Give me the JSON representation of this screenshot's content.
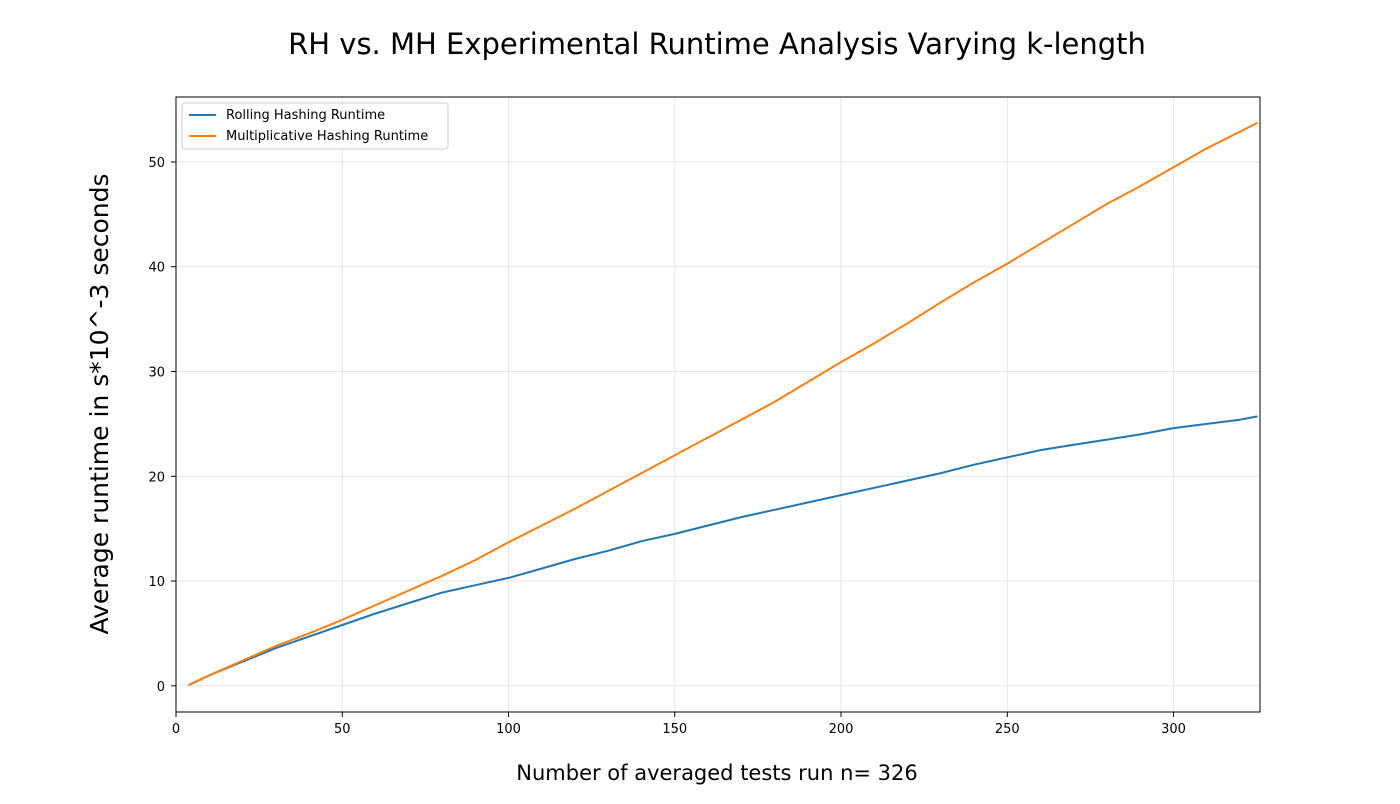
{
  "chart_data": {
    "type": "line",
    "title": "RH vs. MH  Experimental Runtime Analysis Varying k-length",
    "xlabel": "Number of averaged tests run n= 326",
    "ylabel": "Average runtime in s*10^-3 seconds",
    "xlim": [
      0,
      326
    ],
    "ylim": [
      -2.5,
      56.2
    ],
    "xticks": [
      0,
      50,
      100,
      150,
      200,
      250,
      300
    ],
    "yticks": [
      0,
      10,
      20,
      30,
      40,
      50
    ],
    "grid": true,
    "legend_position": "top-left",
    "series": [
      {
        "name": "Rolling Hashing Runtime",
        "color": "#1f77b4",
        "x": [
          4,
          10,
          20,
          30,
          40,
          50,
          60,
          70,
          80,
          90,
          100,
          110,
          120,
          130,
          140,
          150,
          160,
          170,
          180,
          190,
          200,
          210,
          220,
          230,
          240,
          250,
          260,
          270,
          280,
          290,
          300,
          310,
          320,
          325
        ],
        "y": [
          0.1,
          1.0,
          2.3,
          3.6,
          4.7,
          5.8,
          6.9,
          7.9,
          8.9,
          9.6,
          10.3,
          11.2,
          12.1,
          12.9,
          13.8,
          14.5,
          15.3,
          16.1,
          16.8,
          17.5,
          18.2,
          18.9,
          19.6,
          20.3,
          21.1,
          21.8,
          22.5,
          23.0,
          23.5,
          24.0,
          24.6,
          25.0,
          25.4,
          25.7
        ]
      },
      {
        "name": "Multiplicative Hashing Runtime",
        "color": "#ff7f0e",
        "x": [
          4,
          10,
          20,
          30,
          40,
          50,
          60,
          70,
          80,
          90,
          100,
          110,
          120,
          130,
          140,
          150,
          160,
          170,
          180,
          190,
          200,
          210,
          220,
          230,
          240,
          250,
          260,
          270,
          280,
          290,
          300,
          310,
          320,
          325
        ],
        "y": [
          0.1,
          1.0,
          2.4,
          3.8,
          5.0,
          6.3,
          7.7,
          9.1,
          10.5,
          12.0,
          13.7,
          15.3,
          16.9,
          18.6,
          20.3,
          22.0,
          23.7,
          25.4,
          27.1,
          29.0,
          30.9,
          32.7,
          34.6,
          36.6,
          38.5,
          40.3,
          42.2,
          44.1,
          46.0,
          47.7,
          49.5,
          51.3,
          52.9,
          53.7
        ]
      }
    ]
  }
}
